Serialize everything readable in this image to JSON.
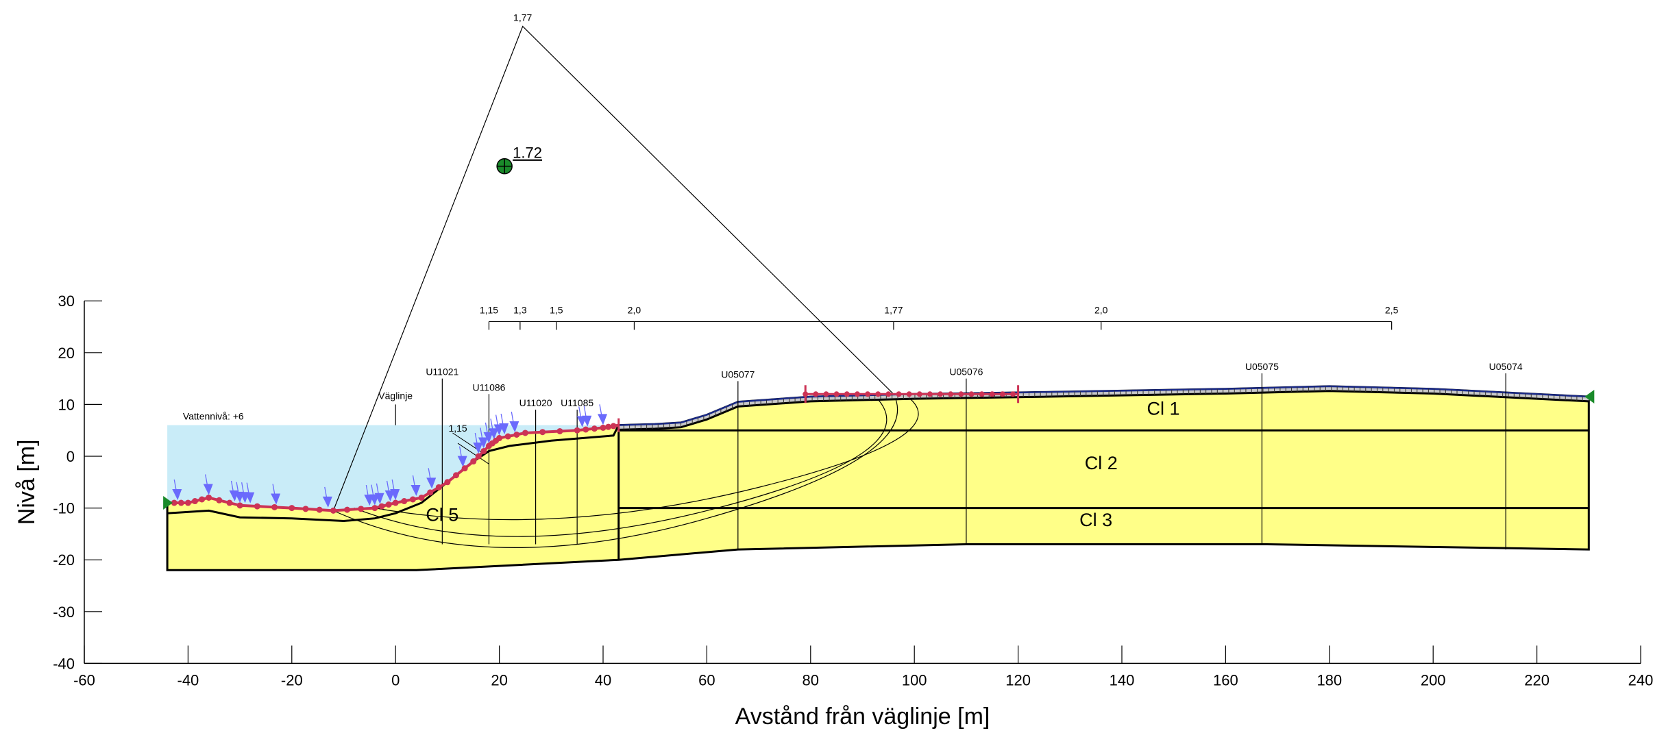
{
  "axes": {
    "x_title": "Avstånd från väglinje [m]",
    "y_title": "Nivå [m]",
    "x_ticks": [
      -60,
      -40,
      -20,
      0,
      20,
      40,
      60,
      80,
      100,
      120,
      140,
      160,
      180,
      200,
      220,
      240
    ],
    "y_ticks": [
      -40,
      -30,
      -20,
      -10,
      0,
      10,
      20,
      30
    ],
    "x_range": [
      -60,
      240
    ],
    "y_range": [
      -40,
      30
    ]
  },
  "ground_surface": [
    [
      -44,
      -9
    ],
    [
      -40,
      -9
    ],
    [
      -36,
      -8
    ],
    [
      -30,
      -9.5
    ],
    [
      -20,
      -10
    ],
    [
      -12,
      -10.5
    ],
    [
      -4,
      -10
    ],
    [
      0,
      -9
    ],
    [
      5,
      -8
    ],
    [
      10,
      -5
    ],
    [
      15,
      -1
    ],
    [
      18,
      2
    ],
    [
      20,
      3.5
    ],
    [
      25,
      4.5
    ],
    [
      35,
      5
    ],
    [
      40,
      5.5
    ],
    [
      43,
      6
    ],
    [
      50,
      6.2
    ],
    [
      55,
      6.5
    ],
    [
      60,
      8
    ],
    [
      66,
      10.5
    ],
    [
      80,
      11.5
    ],
    [
      100,
      12
    ],
    [
      120,
      12.3
    ],
    [
      160,
      13
    ],
    [
      180,
      13.5
    ],
    [
      200,
      13
    ],
    [
      230,
      11.5
    ]
  ],
  "layer_boundaries": [
    {
      "name": "Cl 1",
      "points": [
        [
          43,
          5
        ],
        [
          230,
          5
        ]
      ]
    },
    {
      "name": "Cl 2",
      "points": [
        [
          43,
          -10
        ],
        [
          230,
          -10
        ]
      ]
    },
    {
      "name": "Cl 3",
      "points": [
        [
          -44,
          -22
        ],
        [
          4,
          -22
        ],
        [
          43,
          -20
        ],
        [
          66,
          -18
        ],
        [
          110,
          -17
        ],
        [
          168,
          -17
        ],
        [
          230,
          -18
        ]
      ]
    },
    {
      "name": "Cl 5",
      "points": [
        [
          -44,
          -11
        ],
        [
          -36,
          -10.5
        ],
        [
          -30,
          -11.8
        ],
        [
          -20,
          -12
        ],
        [
          -10,
          -12.5
        ],
        [
          -4,
          -12
        ],
        [
          0,
          -11
        ],
        [
          5,
          -9
        ],
        [
          10,
          -5
        ],
        [
          15,
          -1
        ],
        [
          18,
          1
        ],
        [
          22,
          2
        ],
        [
          30,
          3
        ],
        [
          42,
          4
        ],
        [
          43,
          6
        ]
      ]
    }
  ],
  "layers": [
    {
      "label": "Cl 1",
      "x": 148,
      "y": 8
    },
    {
      "label": "Cl 2",
      "x": 136,
      "y": -2.5
    },
    {
      "label": "Cl 3",
      "x": 135,
      "y": -13.5
    },
    {
      "label": "Cl 5",
      "x": 9,
      "y": -12.5
    }
  ],
  "water": {
    "label": "Vattennivå: +6",
    "level": 6,
    "x_from": -44,
    "x_to": 43
  },
  "boreholes": [
    {
      "id": "U11021",
      "x": 9,
      "top": 15,
      "bottom": -17
    },
    {
      "id": "U11086",
      "x": 18,
      "top": 12,
      "bottom": -17
    },
    {
      "id": "U11020",
      "x": 27,
      "top": 9,
      "bottom": -17
    },
    {
      "id": "U11085",
      "x": 35,
      "top": 9,
      "bottom": -17
    },
    {
      "id": "U05077",
      "x": 66,
      "top": 14.5,
      "bottom": -18
    },
    {
      "id": "U05076",
      "x": 110,
      "top": 15,
      "bottom": -17
    },
    {
      "id": "U05075",
      "x": 167,
      "top": 16,
      "bottom": -17
    },
    {
      "id": "U05074",
      "x": 214,
      "top": 16,
      "bottom": -18
    }
  ],
  "vaglinje": {
    "label": "Väglinje",
    "x": 0
  },
  "fos_scale": {
    "y": 26,
    "ticks": [
      {
        "label": "1,15",
        "x": 18
      },
      {
        "label": "1,3",
        "x": 24
      },
      {
        "label": "1,5",
        "x": 31
      },
      {
        "label": "2,0",
        "x": 46
      },
      {
        "label": "1,77",
        "x": 96
      },
      {
        "label": "2,0",
        "x": 136
      },
      {
        "label": "2,5",
        "x": 192
      }
    ],
    "x_from": 18,
    "x_to": 192
  },
  "critical_fos": {
    "label": "1,77",
    "apex": [
      24.5,
      83
    ]
  },
  "center_marker": {
    "label": "1.72",
    "x": 21,
    "y": 56
  },
  "small_fos_label": {
    "label": "1,15",
    "x": 11,
    "y": 4.5
  },
  "surcharge_loads": {
    "x_from": 79,
    "x_to": 120,
    "y": 12
  },
  "colors": {
    "soil": "#ffff88",
    "water": "#c9ecf8",
    "slip_marker": "#cc3355",
    "seepage_arrow": "#6a6afc",
    "road_surface": "#1a2a8a",
    "pavement": "#c8c8c8",
    "center": "#1a8a2a",
    "boundary_marker": "#1a8a2a"
  }
}
